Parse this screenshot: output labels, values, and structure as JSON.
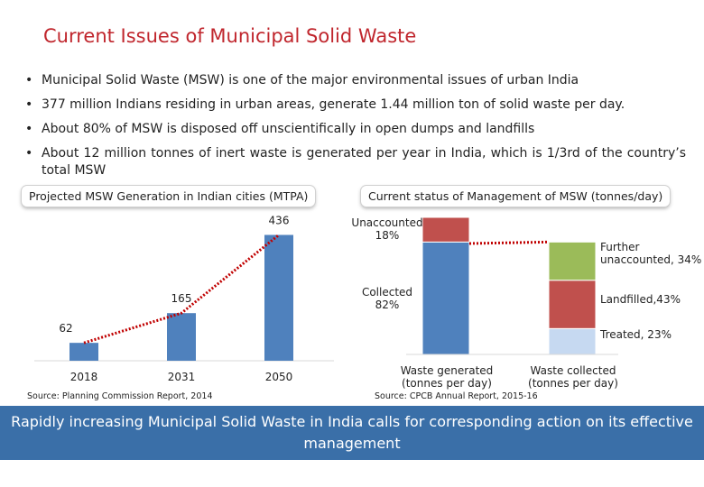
{
  "title": "Current Issues of Municipal Solid Waste",
  "bullets": [
    "Municipal Solid Waste (MSW) is one of the major environmental issues of urban India",
    "377 million Indians residing in urban areas, generate 1.44 million ton of solid waste per day.",
    "About 80% of MSW is disposed off unscientifically in open dumps and landfills",
    "About 12 million tonnes of inert waste is generated per year in India, which is 1/3rd of the country’s total MSW"
  ],
  "left_chart_title": "Projected MSW Generation in Indian cities (MTPA)",
  "right_chart_title": "Current status of Management of MSW (tonnes/day)",
  "left_source": "Source: Planning Commission Report, 2014",
  "right_source": "Source: CPCB Annual Report, 2015-16",
  "banner": "Rapidly increasing Municipal Solid Waste in India calls for corresponding action on its effective management",
  "colors": {
    "title": "#c0262d",
    "bar_blue": "#4f81bd",
    "red": "#c0504d",
    "green": "#9bbb59",
    "light_blue": "#c6d9f1",
    "banner": "#3a6fa8",
    "dotted": "#c00000"
  },
  "chart_data": [
    {
      "type": "bar",
      "categories": [
        "2018",
        "2031",
        "2050"
      ],
      "values": [
        62,
        165,
        436
      ],
      "data_labels": [
        "62",
        "165",
        "436"
      ],
      "ylim": [
        0,
        500
      ],
      "trend_line": "dotted red connecting bar tops"
    },
    {
      "type": "bar",
      "stacked": true,
      "categories": [
        "Waste generated\n(tonnes per day)",
        "Waste collected\n(tonnes per day)"
      ],
      "series": [
        {
          "name": "Collected",
          "label": "Collected\n82%",
          "values": [
            82,
            null
          ]
        },
        {
          "name": "Unaccounted",
          "label": "Unaccounted\n18%",
          "values": [
            18,
            null
          ]
        },
        {
          "name": "Treated",
          "label": "Treated, 23%",
          "values": [
            null,
            23
          ]
        },
        {
          "name": "Landfilled",
          "label": "Landfilled,43%",
          "values": [
            null,
            43
          ]
        },
        {
          "name": "Further unaccounted",
          "label": "Further\nunaccounted, 34%",
          "values": [
            null,
            34
          ]
        }
      ],
      "ylim": [
        0,
        100
      ],
      "connector": "dotted red line between stack tops"
    }
  ]
}
